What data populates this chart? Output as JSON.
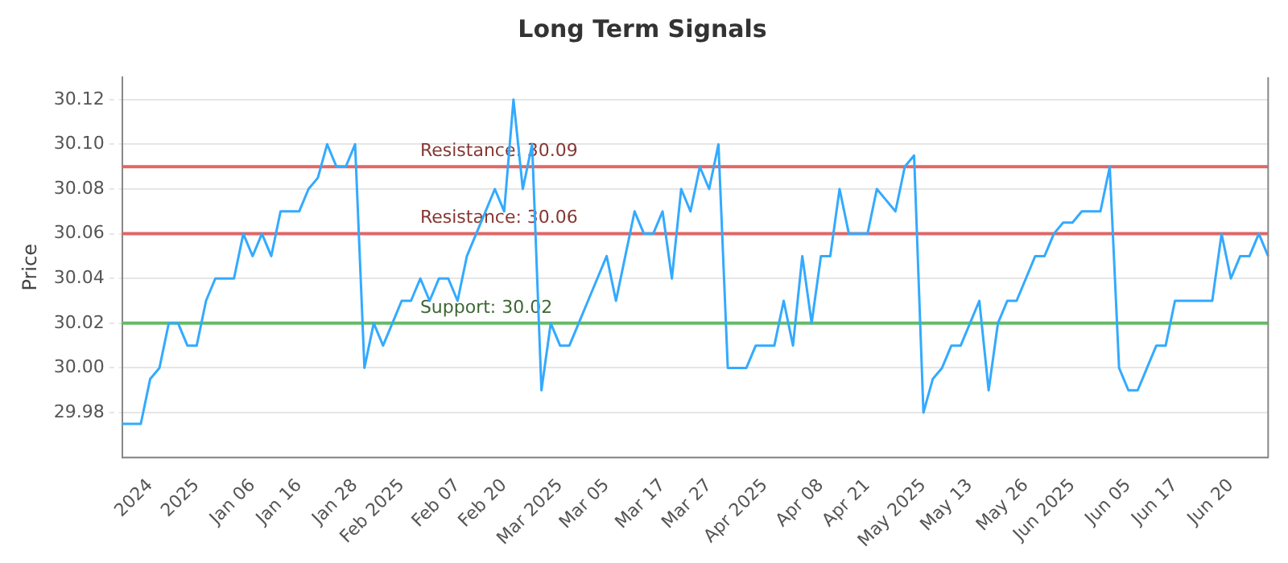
{
  "chart_data": {
    "type": "line",
    "title": "Long Term Signals",
    "ylabel": "Price",
    "categories": [
      null,
      null,
      null,
      "2024",
      null,
      null,
      null,
      null,
      "2025",
      null,
      null,
      null,
      null,
      null,
      "Jan 06",
      null,
      null,
      null,
      null,
      "Jan 16",
      null,
      null,
      null,
      null,
      null,
      "Jan 28",
      null,
      null,
      null,
      null,
      "Feb 2025",
      null,
      null,
      null,
      null,
      null,
      "Feb 07",
      null,
      null,
      null,
      null,
      "Feb 20",
      null,
      null,
      null,
      null,
      null,
      "Mar 2025",
      null,
      null,
      null,
      null,
      "Mar 05",
      null,
      null,
      null,
      null,
      null,
      "Mar 17",
      null,
      null,
      null,
      null,
      "Mar 27",
      null,
      null,
      null,
      null,
      null,
      "Apr 2025",
      null,
      null,
      null,
      null,
      null,
      "Apr 08",
      null,
      null,
      null,
      null,
      "Apr 21",
      null,
      null,
      null,
      null,
      null,
      "May 2025",
      null,
      null,
      null,
      null,
      "May 13",
      null,
      null,
      null,
      null,
      null,
      "May 26",
      null,
      null,
      null,
      null,
      "Jun 2025",
      null,
      null,
      null,
      null,
      null,
      "Jun 05",
      null,
      null,
      null,
      null,
      "Jun 17",
      null,
      null,
      null,
      null,
      null,
      "Jun 20",
      null,
      null,
      null,
      null
    ],
    "series": [
      {
        "color": "#33aaff",
        "values": [
          29.975,
          29.975,
          29.975,
          29.995,
          30.0,
          30.02,
          30.02,
          30.01,
          30.01,
          30.03,
          30.04,
          30.04,
          30.04,
          30.06,
          30.05,
          30.06,
          30.05,
          30.07,
          30.07,
          30.07,
          30.08,
          30.085,
          30.1,
          30.09,
          30.09,
          30.1,
          30.0,
          30.02,
          30.01,
          30.02,
          30.03,
          30.03,
          30.04,
          30.03,
          30.04,
          30.04,
          30.03,
          30.05,
          30.06,
          30.07,
          30.08,
          30.07,
          30.12,
          30.08,
          30.1,
          29.99,
          30.02,
          30.01,
          30.01,
          30.02,
          30.03,
          30.04,
          30.05,
          30.03,
          30.05,
          30.07,
          30.06,
          30.06,
          30.07,
          30.04,
          30.08,
          30.07,
          30.09,
          30.08,
          30.1,
          30.0,
          30.0,
          30.0,
          30.01,
          30.01,
          30.01,
          30.03,
          30.01,
          30.05,
          30.02,
          30.05,
          30.05,
          30.08,
          30.06,
          30.06,
          30.06,
          30.08,
          30.075,
          30.07,
          30.09,
          30.095,
          29.98,
          29.995,
          30.0,
          30.01,
          30.01,
          30.02,
          30.03,
          29.99,
          30.02,
          30.03,
          30.03,
          30.04,
          30.05,
          30.05,
          30.06,
          30.065,
          30.065,
          30.07,
          30.07,
          30.07,
          30.09,
          30.0,
          29.99,
          29.99,
          30.0,
          30.01,
          30.01,
          30.03,
          30.03,
          30.03,
          30.03,
          30.03,
          30.06,
          30.04,
          30.05,
          30.05,
          30.06,
          30.05
        ]
      }
    ],
    "ylim": [
      29.96,
      30.13
    ],
    "yticks": [
      29.98,
      {
        "value": 30.0,
        "label": "30.00"
      },
      30.02,
      30.04,
      30.06,
      30.08,
      {
        "value": 30.1,
        "label": "30.10"
      },
      30.12
    ],
    "grid": "y",
    "legend": false,
    "marker": "none",
    "line_style": "solid",
    "ref_lines": [
      {
        "axis": "y",
        "value": 30.09,
        "label": "Resistance: 30.09",
        "color": "#e06666"
      },
      {
        "axis": "y",
        "value": 30.06,
        "label": "Resistance: 30.06",
        "color": "#e06666"
      },
      {
        "axis": "y",
        "value": 30.02,
        "label": "Support: 30.02",
        "color": "#66bb66"
      }
    ]
  }
}
